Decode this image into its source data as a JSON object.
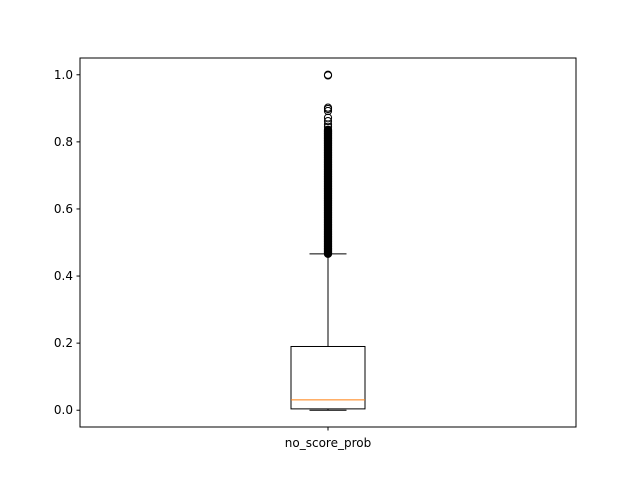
{
  "chart_data": {
    "type": "boxplot",
    "categories": [
      "no_score_prob"
    ],
    "box": {
      "whisker_low": 0.0,
      "q1": 0.004,
      "median": 0.031,
      "q3": 0.19,
      "whisker_high": 0.466
    },
    "outliers": {
      "dense_range": [
        0.466,
        0.836
      ],
      "sparse": [
        0.845,
        0.852,
        0.862,
        0.872,
        0.892,
        0.898,
        0.902,
        0.998,
        1.0
      ]
    },
    "ylim": [
      -0.05,
      1.05
    ],
    "yticks": [
      "0.0",
      "0.2",
      "0.4",
      "0.6",
      "0.8",
      "1.0"
    ],
    "title": "",
    "xlabel": "",
    "ylabel": "",
    "grid": false,
    "colors": {
      "box": "#000000",
      "median": "#ff7f0e",
      "flier": "#000000"
    }
  }
}
